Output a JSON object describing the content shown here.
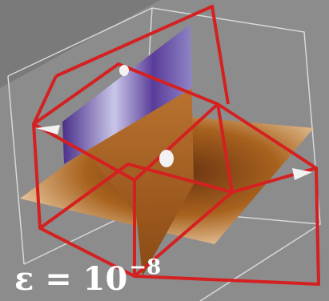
{
  "label": {
    "text": "ε = 10",
    "exponent": "−8"
  }
}
